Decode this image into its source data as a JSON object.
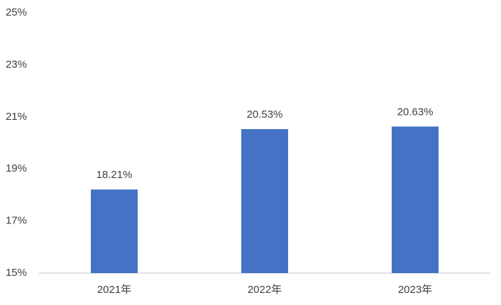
{
  "chart_data": {
    "type": "bar",
    "categories": [
      "2021年",
      "2022年",
      "2023年"
    ],
    "values": [
      18.21,
      20.53,
      20.63
    ],
    "value_labels": [
      "18.21%",
      "20.53%",
      "20.63%"
    ],
    "color": "#4472c4",
    "ylim": [
      15,
      25
    ],
    "yticks": [
      {
        "value": 15,
        "label": "15%"
      },
      {
        "value": 17,
        "label": "17%"
      },
      {
        "value": 19,
        "label": "19%"
      },
      {
        "value": 21,
        "label": "21%"
      },
      {
        "value": 23,
        "label": "23%"
      },
      {
        "value": 25,
        "label": "25%"
      }
    ],
    "grid": false
  }
}
